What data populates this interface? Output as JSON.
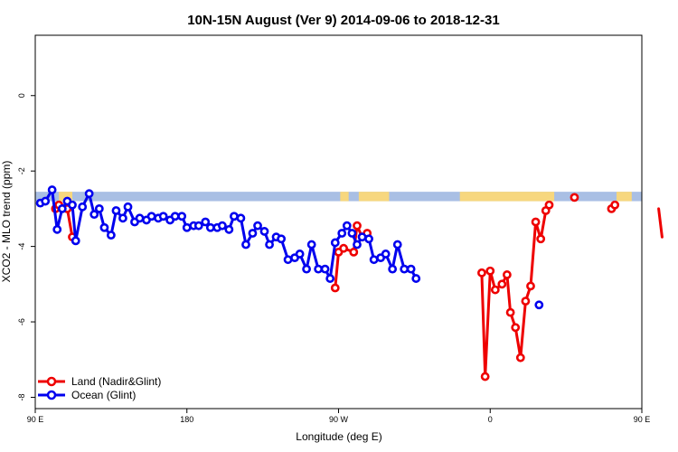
{
  "chart_data": {
    "type": "line",
    "title": "10N-15N August (Ver 9)   2014-09-06 to 2018-12-31",
    "xlabel": "Longitude (deg E)",
    "ylabel": "XCO2 - MLO trend (ppm)",
    "xlim": [
      90,
      450
    ],
    "ylim": [
      -8.3,
      1.6
    ],
    "x_ticks": [
      {
        "value": 90,
        "label": "90 E"
      },
      {
        "value": 180,
        "label": "180"
      },
      {
        "value": 270,
        "label": "90 W"
      },
      {
        "value": 360,
        "label": "0"
      },
      {
        "value": 450,
        "label": "90 E"
      },
      {
        "value": 540,
        "label": "180"
      }
    ],
    "y_ticks": [
      {
        "value": 0,
        "label": "0"
      },
      {
        "value": -2,
        "label": "-2"
      },
      {
        "value": -4,
        "label": "-4"
      },
      {
        "value": -6,
        "label": "-6"
      },
      {
        "value": -8,
        "label": "-8"
      }
    ],
    "grid": false,
    "legend_position": "bottom-left",
    "background_band": {
      "y_range": [
        -2.55,
        -2.8
      ],
      "ocean_color": "#a9bfe4",
      "land_color": "#f7d77e",
      "land_segments": [
        [
          104,
          112
        ],
        [
          271,
          276
        ],
        [
          282,
          300
        ],
        [
          342,
          398
        ],
        [
          435,
          444
        ],
        [
          473,
          483
        ],
        [
          537,
          540
        ]
      ]
    },
    "series": [
      {
        "name": "Land (Nadir&Glint)",
        "color": "#ee0000",
        "segments": [
          [
            [
              102,
              -3.0
            ],
            [
              104,
              -2.9
            ]
          ],
          [
            [
              109,
              -3.0
            ],
            [
              112,
              -3.75
            ]
          ],
          [
            [
              268,
              -5.1
            ],
            [
              270,
              -4.15
            ],
            [
              273,
              -4.05
            ],
            [
              279,
              -4.15
            ],
            [
              281,
              -3.45
            ],
            [
              284,
              -3.75
            ],
            [
              287,
              -3.65
            ]
          ],
          [
            [
              355,
              -4.7
            ],
            [
              357,
              -7.45
            ],
            [
              360,
              -4.65
            ],
            [
              363,
              -5.15
            ],
            [
              367,
              -5.0
            ],
            [
              370,
              -4.75
            ],
            [
              372,
              -5.75
            ],
            [
              375,
              -6.15
            ],
            [
              378,
              -6.95
            ],
            [
              381,
              -5.45
            ],
            [
              384,
              -5.05
            ],
            [
              387,
              -3.35
            ],
            [
              390,
              -3.8
            ],
            [
              393,
              -3.05
            ],
            [
              395,
              -2.9
            ]
          ],
          [
            [
              410,
              -2.7
            ]
          ],
          [
            [
              432,
              -3.0
            ],
            [
              434,
              -2.9
            ]
          ],
          [
            [
              460,
              -3.0
            ],
            [
              462,
              -3.75
            ]
          ]
        ]
      },
      {
        "name": "Ocean (Glint)",
        "color": "#0000ee",
        "segments": [
          [
            [
              93,
              -2.85
            ],
            [
              96,
              -2.8
            ],
            [
              100,
              -2.5
            ],
            [
              103,
              -3.55
            ],
            [
              106,
              -3.0
            ],
            [
              109,
              -2.8
            ],
            [
              112,
              -2.9
            ],
            [
              114,
              -3.85
            ],
            [
              118,
              -2.95
            ],
            [
              122,
              -2.6
            ],
            [
              125,
              -3.15
            ],
            [
              128,
              -3.0
            ],
            [
              131,
              -3.5
            ],
            [
              135,
              -3.7
            ],
            [
              138,
              -3.05
            ],
            [
              142,
              -3.25
            ],
            [
              145,
              -2.95
            ],
            [
              149,
              -3.35
            ],
            [
              152,
              -3.25
            ],
            [
              156,
              -3.3
            ],
            [
              159,
              -3.2
            ],
            [
              163,
              -3.25
            ],
            [
              166,
              -3.2
            ],
            [
              170,
              -3.3
            ],
            [
              173,
              -3.2
            ],
            [
              177,
              -3.2
            ],
            [
              180,
              -3.5
            ],
            [
              184,
              -3.45
            ],
            [
              187,
              -3.45
            ],
            [
              191,
              -3.35
            ],
            [
              194,
              -3.5
            ],
            [
              198,
              -3.5
            ],
            [
              201,
              -3.45
            ],
            [
              205,
              -3.55
            ],
            [
              208,
              -3.2
            ],
            [
              212,
              -3.25
            ],
            [
              215,
              -3.95
            ],
            [
              219,
              -3.65
            ],
            [
              222,
              -3.45
            ],
            [
              226,
              -3.6
            ],
            [
              229,
              -3.95
            ],
            [
              233,
              -3.75
            ],
            [
              236,
              -3.8
            ],
            [
              240,
              -4.35
            ],
            [
              244,
              -4.3
            ],
            [
              247,
              -4.2
            ],
            [
              251,
              -4.6
            ],
            [
              254,
              -3.95
            ],
            [
              258,
              -4.6
            ],
            [
              262,
              -4.6
            ],
            [
              265,
              -4.85
            ],
            [
              268,
              -3.9
            ],
            [
              272,
              -3.65
            ],
            [
              275,
              -3.45
            ],
            [
              278,
              -3.65
            ],
            [
              281,
              -3.95
            ],
            [
              284,
              -3.75
            ],
            [
              288,
              -3.8
            ],
            [
              291,
              -4.35
            ],
            [
              295,
              -4.3
            ],
            [
              298,
              -4.2
            ],
            [
              302,
              -4.6
            ],
            [
              305,
              -3.95
            ],
            [
              309,
              -4.6
            ],
            [
              313,
              -4.6
            ],
            [
              316,
              -4.85
            ]
          ]
        ]
      }
    ],
    "extra_points": {
      "ocean": [
        [
          389,
          -5.55
        ]
      ]
    }
  },
  "legend": [
    {
      "label": "Land (Nadir&Glint)",
      "color": "#ee0000"
    },
    {
      "label": "Ocean (Glint)",
      "color": "#0000ee"
    }
  ]
}
